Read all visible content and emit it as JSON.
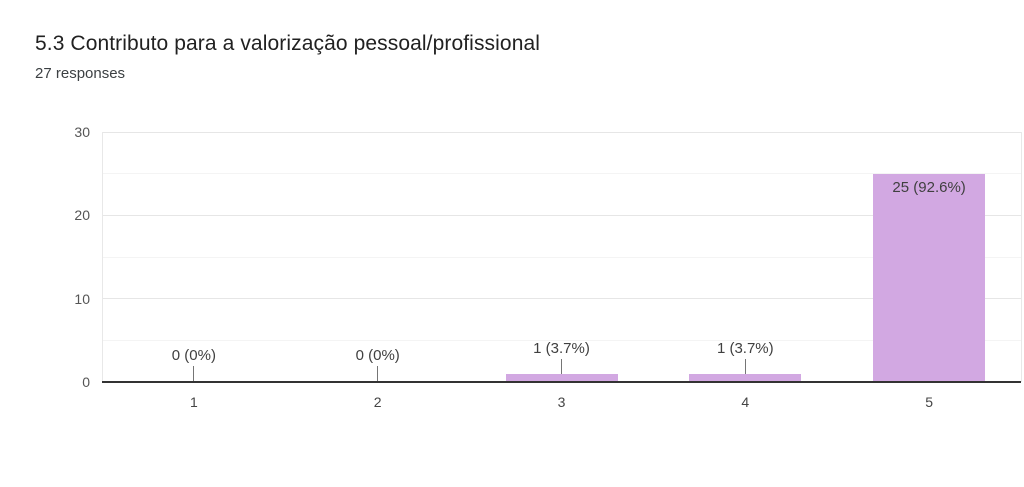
{
  "header": {
    "question_number": "5.3",
    "title": "5.3 Contributo para a valorização pessoal/profissional",
    "responses_label": "27 responses"
  },
  "chart_data": {
    "type": "bar",
    "title": "5.3 Contributo para a valorização pessoal/profissional",
    "subtitle": "27 responses",
    "total_responses": 27,
    "categories": [
      "1",
      "2",
      "3",
      "4",
      "5"
    ],
    "values": [
      0,
      0,
      1,
      1,
      25
    ],
    "percentages": [
      0,
      0,
      3.7,
      3.7,
      92.6
    ],
    "data_labels": [
      "0 (0%)",
      "0 (0%)",
      "1 (3.7%)",
      "1 (3.7%)",
      "25 (92.6%)"
    ],
    "xlabel": "",
    "ylabel": "",
    "ylim": [
      0,
      30
    ],
    "yticks": [
      0,
      10,
      20,
      30
    ],
    "minor_yticks": [
      5,
      15,
      25
    ],
    "grid": true,
    "legend": "none",
    "colors": {
      "bar_fill": "#d2a8e2",
      "axis_line": "#333333",
      "gridline": "#e6e6e6",
      "minor_gridline": "#f4f4f4",
      "plot_border": "#e8e8e8",
      "annotation_text": "#404040",
      "annotation_stem": "#757575",
      "y_tick_text": "#555555",
      "x_tick_text": "#444444",
      "title_text": "#212121",
      "subtitle_text": "#3c4043"
    }
  }
}
